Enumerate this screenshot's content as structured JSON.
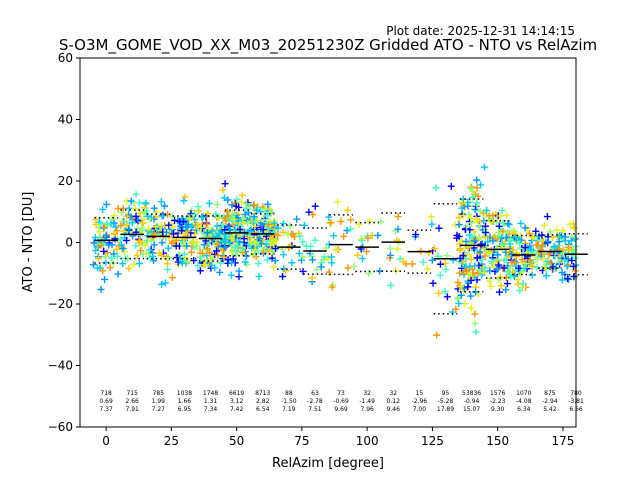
{
  "plot_date": "Plot date: 2025-12-31 14:14:15",
  "chart_data": {
    "type": "scatter",
    "title": "S-O3M_GOME_VOD_XX_M03_20251230Z Gridded ATO - NTO vs RelAzim",
    "xlabel": "RelAzim [degree]",
    "ylabel": "ATO - NTO [DU]",
    "xlim": [
      -10,
      180
    ],
    "ylim": [
      -60,
      60
    ],
    "xticks": [
      0,
      25,
      50,
      75,
      100,
      125,
      150,
      175
    ],
    "yticks": [
      -60,
      -40,
      -20,
      0,
      20,
      40,
      60
    ],
    "grid": false,
    "marker": "+",
    "colors": [
      "#0000ff",
      "#0096ff",
      "#00c8ff",
      "#40ffc0",
      "#90ff70",
      "#e0f020",
      "#ffc800",
      "#ff9600"
    ],
    "bins": [
      {
        "x": 0,
        "n": "718",
        "mean": "0.69",
        "std": "7.37"
      },
      {
        "x": 10,
        "n": "715",
        "mean": "2.66",
        "std": "7.91"
      },
      {
        "x": 20,
        "n": "785",
        "mean": "1.99",
        "std": "7.27"
      },
      {
        "x": 30,
        "n": "1038",
        "mean": "1.66",
        "std": "6.95"
      },
      {
        "x": 40,
        "n": "1748",
        "mean": "1.31",
        "std": "7.34"
      },
      {
        "x": 50,
        "n": "6619",
        "mean": "3.12",
        "std": "7.42"
      },
      {
        "x": 60,
        "n": "8713",
        "mean": "2.82",
        "std": "6.54"
      },
      {
        "x": 70,
        "n": "88",
        "mean": "-1.50",
        "std": "7.19"
      },
      {
        "x": 80,
        "n": "63",
        "mean": "-2.78",
        "std": "7.51"
      },
      {
        "x": 90,
        "n": "73",
        "mean": "-0.69",
        "std": "9.69"
      },
      {
        "x": 100,
        "n": "32",
        "mean": "-1.49",
        "std": "7.96"
      },
      {
        "x": 110,
        "n": "32",
        "mean": "0.12",
        "std": "9.46"
      },
      {
        "x": 120,
        "n": "15",
        "mean": "-2.96",
        "std": "7.00"
      },
      {
        "x": 130,
        "n": "95",
        "mean": "-5.28",
        "std": "17.89"
      },
      {
        "x": 140,
        "n": "53836",
        "mean": "-0.94",
        "std": "15.07"
      },
      {
        "x": 150,
        "n": "1576",
        "mean": "-2.23",
        "std": "9.30"
      },
      {
        "x": 160,
        "n": "1070",
        "mean": "-4.08",
        "std": "6.34"
      },
      {
        "x": 170,
        "n": "875",
        "mean": "-2.94",
        "std": "5.42"
      },
      {
        "x": 180,
        "n": "780",
        "mean": "-3.81",
        "std": "6.66"
      }
    ]
  }
}
